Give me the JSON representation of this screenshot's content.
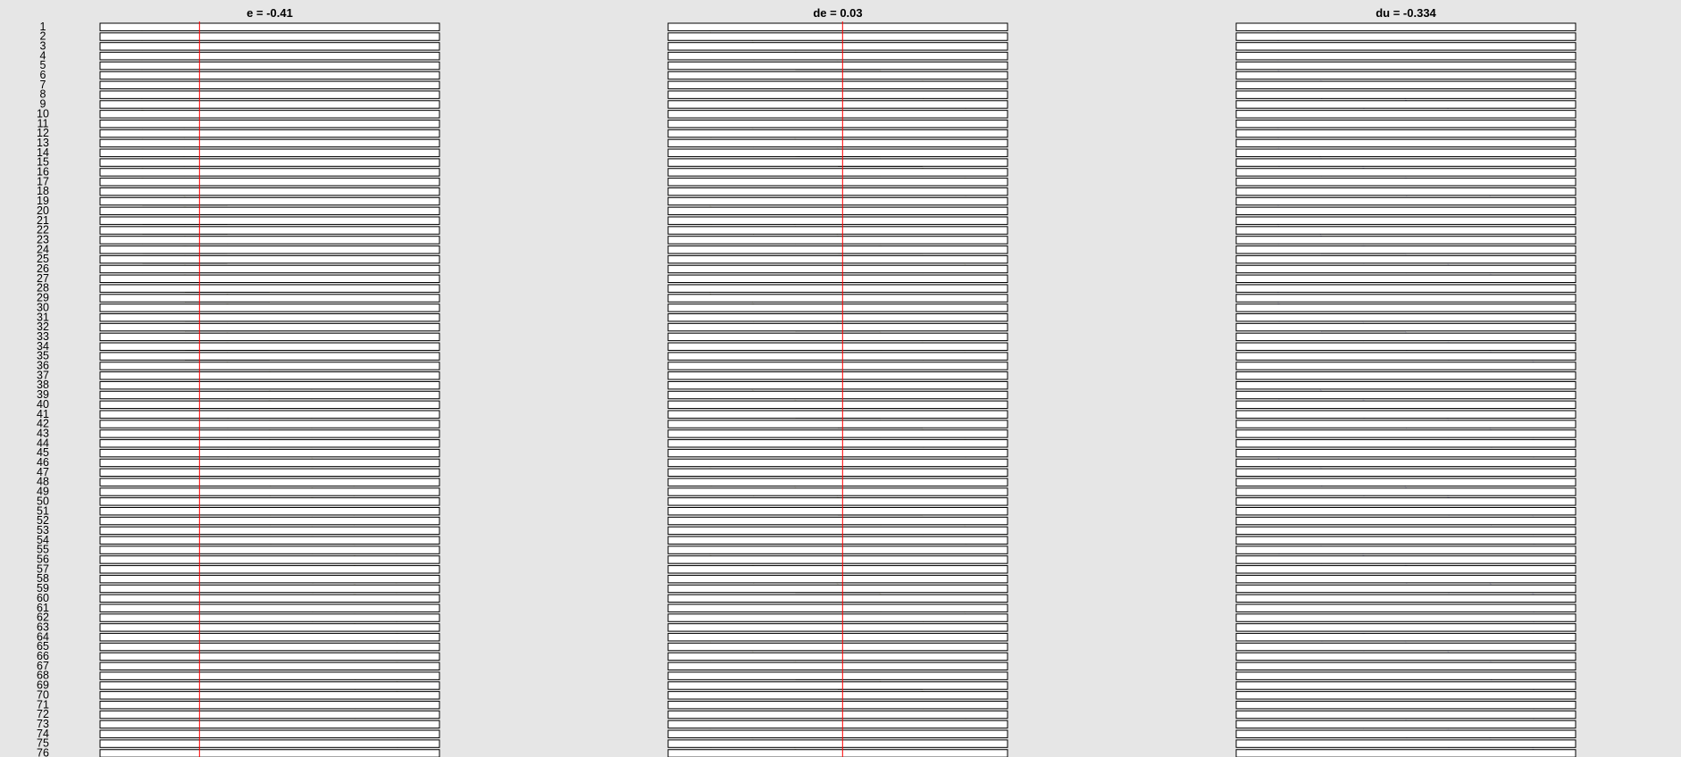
{
  "columns": [
    {
      "title": "e = -0.41"
    },
    {
      "title": "de = 0.03"
    },
    {
      "title": "du = -0.334"
    }
  ],
  "rules": [
    1,
    2,
    3,
    4,
    5,
    6,
    7,
    8,
    9,
    10,
    11,
    12,
    13,
    14,
    15,
    16,
    17,
    18,
    19,
    20,
    21,
    22,
    23,
    24,
    25,
    26,
    27,
    28,
    29,
    30,
    31,
    32,
    33,
    34,
    35,
    36,
    37,
    38,
    39,
    40,
    41,
    42,
    43,
    44,
    45,
    46,
    47,
    48,
    49,
    50,
    51,
    52,
    53,
    54,
    55,
    56,
    57,
    58,
    59,
    60,
    61,
    62,
    63,
    64,
    65,
    66,
    67,
    68,
    69,
    70,
    71,
    72,
    73,
    74,
    75,
    76
  ]
}
